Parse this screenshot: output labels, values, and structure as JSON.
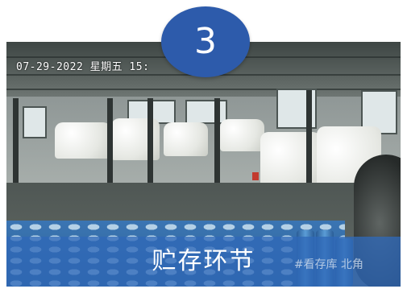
{
  "step": {
    "number": "3"
  },
  "photo": {
    "timestamp": "07-29-2022 星期五 15:",
    "caption": "贮存环节",
    "camera_label": "#看存库 北角"
  },
  "colors": {
    "badge": "#2d5bab",
    "caption_bar": "#3069b9",
    "drums": "#3a77b8"
  }
}
